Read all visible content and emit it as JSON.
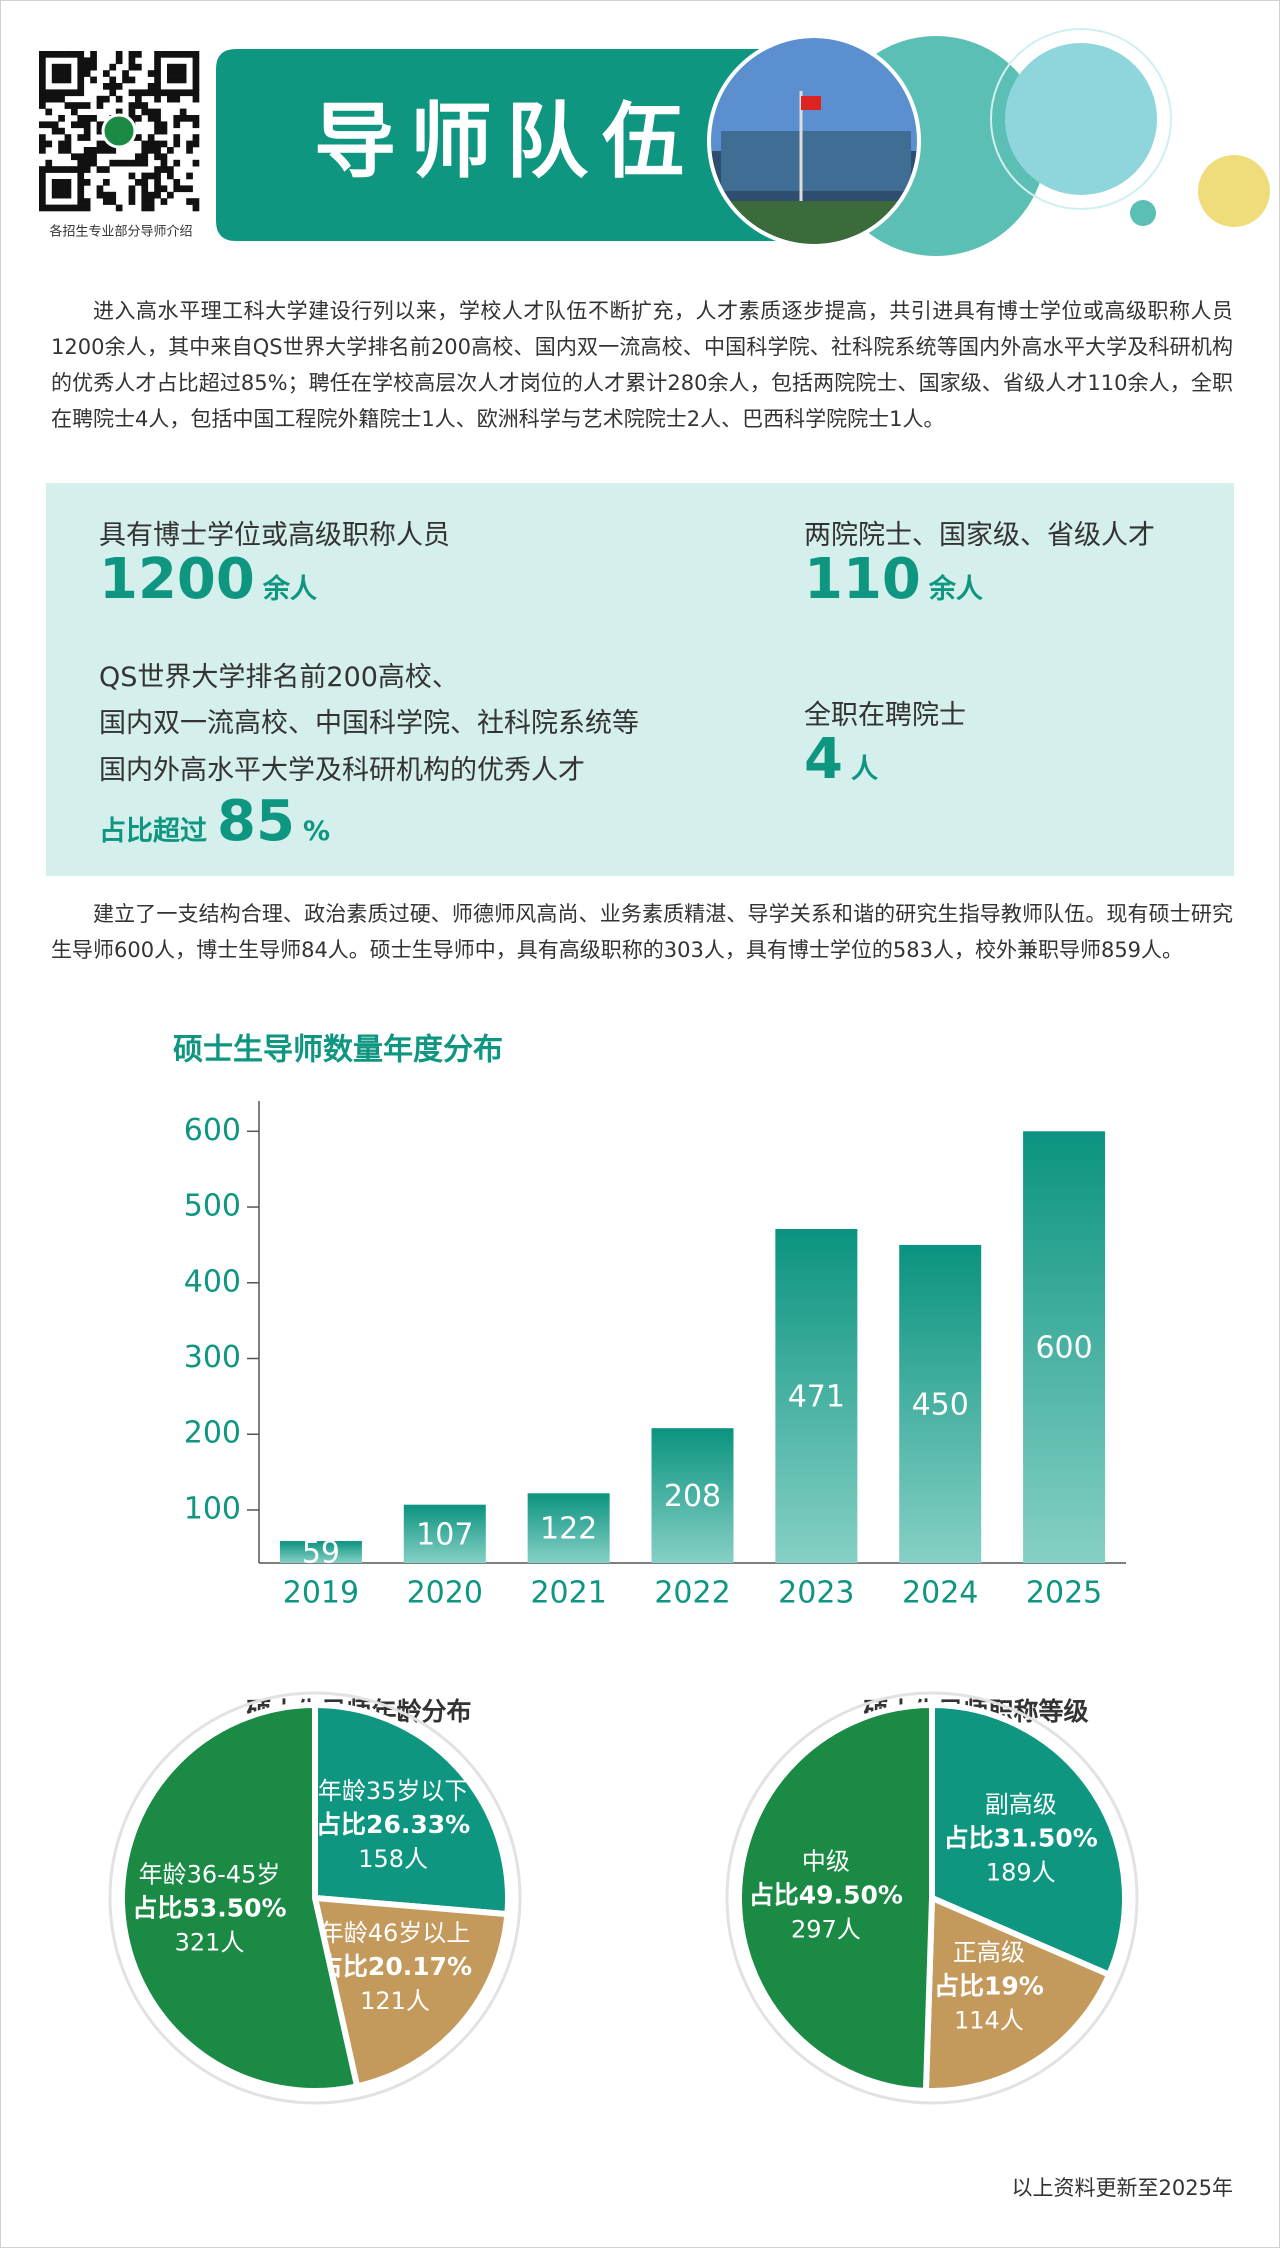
{
  "header": {
    "qr_caption": "各招生专业部分导师介绍",
    "title": "导师队伍"
  },
  "intro": "进入高水平理工科大学建设行列以来，学校人才队伍不断扩充，人才素质逐步提高，共引进具有博士学位或高级职称人员1200余人，其中来自QS世界大学排名前200高校、国内双一流高校、中国科学院、社科院系统等国内外高水平大学及科研机构的优秀人才占比超过85%；聘任在学校高层次人才岗位的人才累计280余人，包括两院院士、国家级、省级人才110余人，全职在聘院士4人，包括中国工程院外籍院士1人、欧洲科学与艺术院院士2人、巴西科学院院士1人。",
  "stats": {
    "phd": {
      "label": "具有博士学位或高级职称人员",
      "number": "1200",
      "unit": "余人"
    },
    "talents": {
      "label": "两院院士、国家级、省级人才",
      "number": "110",
      "unit": "余人"
    },
    "elite": {
      "lines": [
        "QS世界大学排名前200高校、",
        "国内双一流高校、中国科学院、社科院系统等",
        "国内外高水平大学及科研机构的优秀人才"
      ],
      "prefix": "占比超过",
      "number": "85",
      "unit": "%"
    },
    "academicians": {
      "label": "全职在聘院士",
      "number": "4",
      "unit": "人"
    }
  },
  "team": "建立了一支结构合理、政治素质过硬、师德师风高尚、业务素质精湛、导学关系和谐的研究生指导教师队伍。现有硕士研究生导师600人，博士生导师84人。硕士生导师中，具有高级职称的303人，具有博士学位的583人，校外兼职导师859人。",
  "chart_data": [
    {
      "type": "bar",
      "title": "硕士生导师数量年度分布",
      "categories": [
        "2019",
        "2020",
        "2021",
        "2022",
        "2023",
        "2024",
        "2025"
      ],
      "values": [
        59,
        107,
        122,
        208,
        471,
        450,
        600
      ],
      "ylim": [
        30,
        640
      ],
      "yticks": [
        100,
        200,
        300,
        400,
        500,
        600
      ],
      "colors": [
        "#0b9380",
        "#86d0c5"
      ]
    },
    {
      "type": "pie",
      "title": "硕士生导师年龄分布",
      "categories": [
        "年龄35岁以下",
        "年龄46岁以上",
        "年龄36-45岁"
      ],
      "values": [
        26.33,
        20.17,
        53.5
      ],
      "value_labels": [
        "占比26.33%",
        "占比20.17%",
        "占比53.50%"
      ],
      "count_labels": [
        "158人",
        "121人",
        "321人"
      ],
      "colors": [
        "#0e9680",
        "#c49a5c",
        "#1a8a45"
      ]
    },
    {
      "type": "pie",
      "title": "硕士生导师职称等级",
      "categories": [
        "副高级",
        "正高级",
        "中级"
      ],
      "values": [
        31.5,
        19,
        49.5
      ],
      "value_labels": [
        "占比31.50%",
        "占比19%",
        "占比49.50%"
      ],
      "count_labels": [
        "189人",
        "114人",
        "297人"
      ],
      "colors": [
        "#0e9680",
        "#c49a5c",
        "#1a8a45"
      ]
    }
  ],
  "footer": "以上资料更新至2025年"
}
